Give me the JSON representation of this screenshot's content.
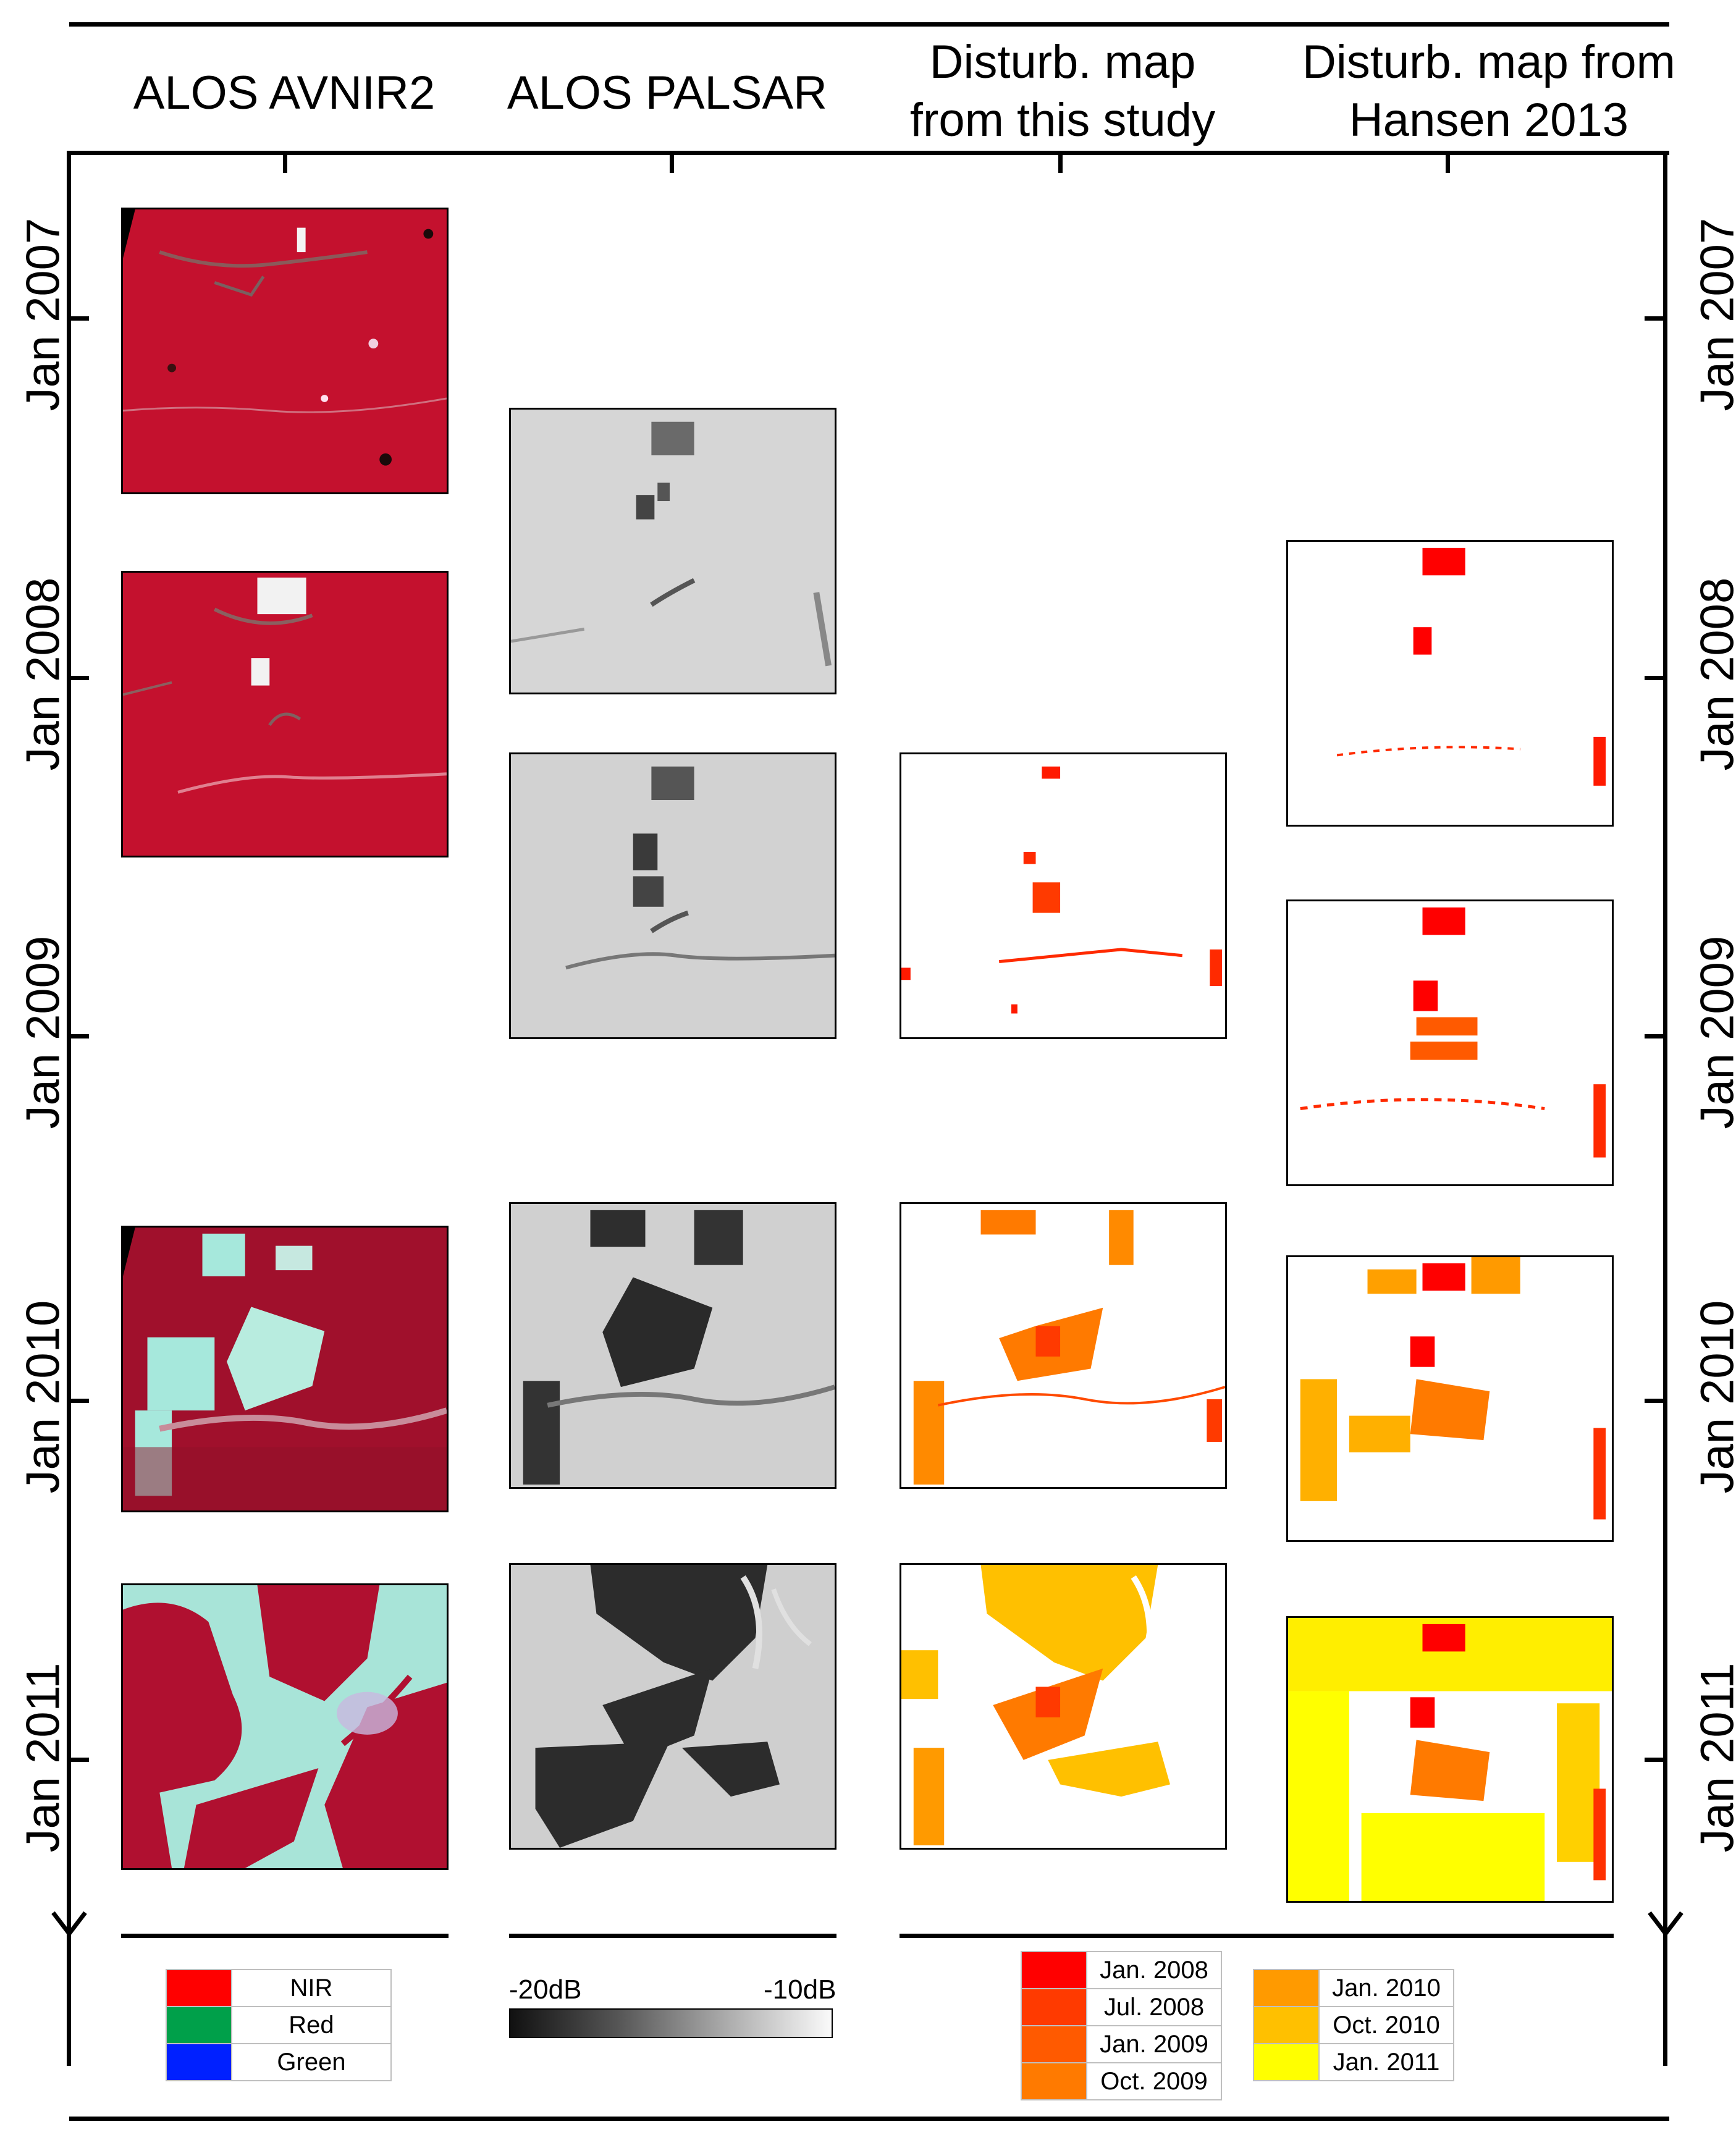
{
  "column_headers": [
    "ALOS AVNIR2",
    "ALOS PALSAR",
    "Disturb. map\nfrom this study",
    "Disturb. map from\nHansen 2013"
  ],
  "time_labels": [
    "Jan 2007",
    "Jan 2008",
    "Jan 2009",
    "Jan 2010",
    "Jan 2011"
  ],
  "legend_avnir": [
    {
      "label": "NIR",
      "color": "#ff0000"
    },
    {
      "label": "Red",
      "color": "#00a04a"
    },
    {
      "label": "Green",
      "color": "#0020ff"
    }
  ],
  "legend_palsar": {
    "min": "-20dB",
    "max": "-10dB"
  },
  "legend_disturbance": [
    {
      "label": "Jan. 2008",
      "color": "#ff0000"
    },
    {
      "label": "Jul. 2008",
      "color": "#ff3a00"
    },
    {
      "label": "Jan. 2009",
      "color": "#ff5a00"
    },
    {
      "label": "Oct. 2009",
      "color": "#ff7a00"
    },
    {
      "label": "Jan. 2010",
      "color": "#ff9a00"
    },
    {
      "label": "Oct. 2010",
      "color": "#ffc000"
    },
    {
      "label": "Jan. 2011",
      "color": "#ffff00"
    }
  ]
}
